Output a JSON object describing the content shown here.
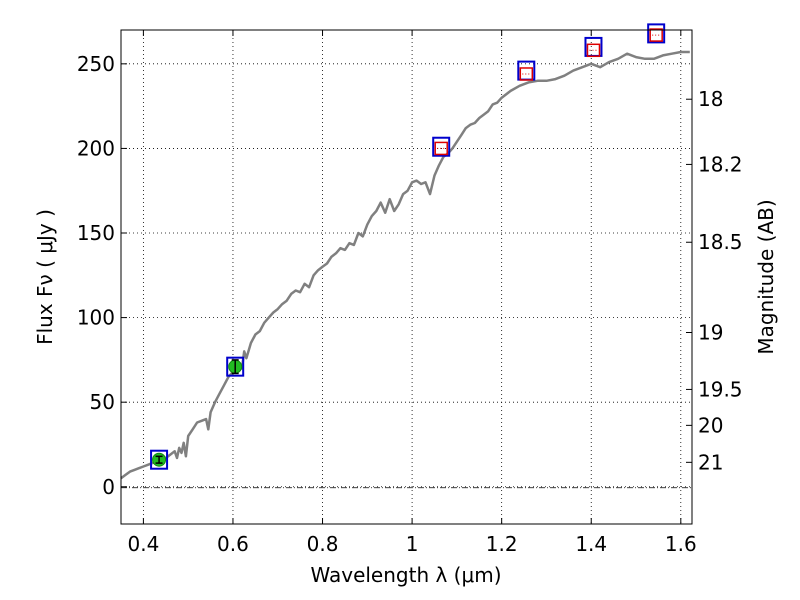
{
  "chart_data": {
    "type": "line",
    "title": "",
    "xlabel": "Wavelength  λ (μm)",
    "ylabel": "Flux  Fν  ( μJy )",
    "y2label": "Magnitude (AB)",
    "xlim": [
      0.35,
      1.625
    ],
    "ylim": [
      -22,
      270
    ],
    "xticks": [
      0.4,
      0.6,
      0.8,
      1.0,
      1.2,
      1.4,
      1.6
    ],
    "xtick_labels": [
      "0.4",
      "0.6",
      "0.8",
      "1",
      "1.2",
      "1.4",
      "1.6"
    ],
    "yticks": [
      0,
      50,
      100,
      150,
      200,
      250
    ],
    "ytick_labels": [
      "0",
      "50",
      "100",
      "150",
      "200",
      "250"
    ],
    "y2ticks": [
      18,
      18.2,
      18.5,
      19,
      19.5,
      20,
      21
    ],
    "y2tick_labels": [
      "18",
      "18.2",
      "18.5",
      "19",
      "19.5",
      "20",
      "21"
    ],
    "grid": true,
    "zero_line": true,
    "colors": {
      "model": "#808080",
      "model_photometry_box": "#0000cc",
      "predicted_flux_marker": "#dd0000",
      "observed_point": "#22bb22"
    },
    "series": [
      {
        "style": "line",
        "x": [
          0.35,
          0.36,
          0.37,
          0.38,
          0.39,
          0.4,
          0.41,
          0.42,
          0.43,
          0.44,
          0.45,
          0.46,
          0.47,
          0.475,
          0.48,
          0.485,
          0.49,
          0.495,
          0.5,
          0.51,
          0.52,
          0.53,
          0.54,
          0.545,
          0.55,
          0.56,
          0.57,
          0.58,
          0.59,
          0.6,
          0.61,
          0.62,
          0.625,
          0.63,
          0.64,
          0.65,
          0.66,
          0.67,
          0.68,
          0.69,
          0.7,
          0.71,
          0.72,
          0.73,
          0.74,
          0.75,
          0.76,
          0.77,
          0.78,
          0.79,
          0.8,
          0.81,
          0.82,
          0.83,
          0.84,
          0.85,
          0.86,
          0.87,
          0.88,
          0.89,
          0.9,
          0.91,
          0.92,
          0.93,
          0.94,
          0.95,
          0.96,
          0.97,
          0.98,
          0.99,
          1.0,
          1.01,
          1.02,
          1.03,
          1.04,
          1.05,
          1.06,
          1.07,
          1.08,
          1.09,
          1.1,
          1.11,
          1.12,
          1.13,
          1.14,
          1.15,
          1.16,
          1.17,
          1.18,
          1.19,
          1.2,
          1.22,
          1.24,
          1.26,
          1.28,
          1.3,
          1.32,
          1.34,
          1.36,
          1.38,
          1.4,
          1.42,
          1.44,
          1.46,
          1.48,
          1.5,
          1.52,
          1.54,
          1.56,
          1.58,
          1.6,
          1.62
        ],
        "y": [
          5,
          7,
          9,
          10,
          11,
          12,
          13,
          14,
          15,
          16,
          17,
          19,
          21,
          17,
          23,
          20,
          26,
          18,
          30,
          34,
          38,
          39,
          40,
          34,
          44,
          50,
          55,
          60,
          65,
          68,
          73,
          70,
          80,
          76,
          85,
          90,
          92,
          97,
          100,
          103,
          105,
          108,
          110,
          114,
          116,
          115,
          120,
          118,
          125,
          128,
          130,
          132,
          136,
          138,
          141,
          140,
          144,
          143,
          150,
          148,
          155,
          160,
          163,
          168,
          162,
          170,
          163,
          167,
          173,
          175,
          180,
          181,
          179,
          180,
          173,
          184,
          190,
          195,
          197,
          200,
          204,
          208,
          212,
          214,
          215,
          218,
          220,
          222,
          226,
          227,
          230,
          234,
          237,
          239,
          240,
          240,
          241,
          243,
          246,
          248,
          250,
          248,
          251,
          253,
          256,
          254,
          253,
          253,
          255,
          256,
          257,
          257
        ]
      },
      {
        "style": "box",
        "x": [
          0.435,
          0.605,
          1.065,
          1.255,
          1.405,
          1.545
        ],
        "y": [
          16,
          71,
          201,
          246,
          260,
          268
        ]
      },
      {
        "style": "red-box",
        "x": [
          1.065,
          1.255,
          1.405,
          1.545
        ],
        "y": [
          200,
          244,
          258,
          267
        ]
      },
      {
        "style": "errorbar-point",
        "x": [
          0.435,
          0.605
        ],
        "y": [
          16,
          71
        ],
        "yerr": [
          2,
          4
        ]
      }
    ]
  }
}
